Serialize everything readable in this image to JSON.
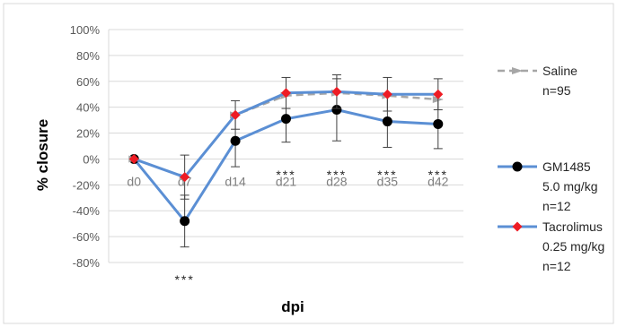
{
  "chart_data": {
    "type": "line",
    "xlabel": "dpi",
    "ylabel": "% closure",
    "categories": [
      "d0",
      "d7",
      "d14",
      "d21",
      "d28",
      "d35",
      "d42"
    ],
    "ylim": [
      -80,
      100
    ],
    "yticks": [
      "100%",
      "80%",
      "60%",
      "40%",
      "20%",
      "0%",
      "-20%",
      "-40%",
      "-60%",
      "-80%"
    ],
    "ytick_values": [
      100,
      80,
      60,
      40,
      20,
      0,
      -20,
      -40,
      -60,
      -80
    ],
    "grid": true,
    "legend_position": "right",
    "series": [
      {
        "name": "Saline",
        "legend_lines": [
          "Saline",
          "n=95"
        ],
        "color": "#a6a6a6",
        "marker_color": "#a6a6a6",
        "dashed": true,
        "values": [
          0,
          -14,
          34,
          49,
          51,
          49,
          46
        ],
        "errors": [
          0,
          0,
          0,
          0,
          0,
          0,
          0
        ]
      },
      {
        "name": "GM1485",
        "legend_lines": [
          "GM1485",
          "5.0 mg/kg",
          "n=12"
        ],
        "color": "#5b8fd4",
        "marker_color": "#000000",
        "dashed": false,
        "values": [
          0,
          -48,
          14,
          31,
          38,
          29,
          27
        ],
        "errors": [
          0,
          20,
          20,
          18,
          24,
          20,
          19
        ]
      },
      {
        "name": "Tacrolimus",
        "legend_lines": [
          "Tacrolimus",
          "0.25 mg/kg",
          "n=12"
        ],
        "color": "#5b8fd4",
        "marker_color": "#ee1c24",
        "dashed": false,
        "values": [
          0,
          -14,
          34,
          51,
          52,
          50,
          50
        ],
        "errors": [
          0,
          17,
          11,
          12,
          13,
          13,
          12
        ]
      }
    ],
    "annotations": [
      {
        "category": "d7",
        "text": "***",
        "position": "below"
      },
      {
        "category": "d21",
        "text": "***",
        "position": "above"
      },
      {
        "category": "d28",
        "text": "***",
        "position": "above"
      },
      {
        "category": "d35",
        "text": "***",
        "position": "above"
      },
      {
        "category": "d42",
        "text": "***",
        "position": "above"
      }
    ]
  }
}
